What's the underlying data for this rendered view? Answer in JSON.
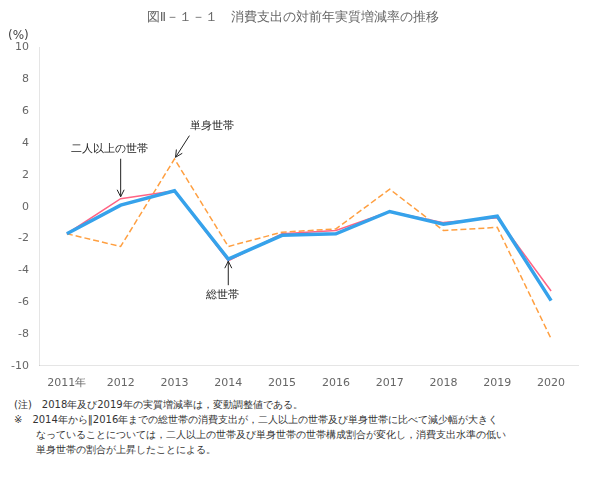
{
  "chart_data": {
    "type": "line",
    "title": "図Ⅱ－１－１　消費支出の対前年実質増減率の推移",
    "ylabel": "(%)",
    "x": [
      2011,
      2012,
      2013,
      2014,
      2015,
      2016,
      2017,
      2018,
      2019,
      2020
    ],
    "xlim": [
      2010.5,
      2020.5
    ],
    "xticks": [
      {
        "value": 2011,
        "label": "2011年"
      },
      2012,
      2013,
      2014,
      2015,
      2016,
      2017,
      2018,
      2019,
      2020
    ],
    "ylim": [
      -10,
      10
    ],
    "yticks": [
      -10,
      -8,
      -6,
      -4,
      -2,
      0,
      2,
      4,
      6,
      8,
      10
    ],
    "grid": false,
    "series": [
      {
        "name": "総世帯",
        "values": [
          -1.7,
          0.1,
          1.0,
          -3.3,
          -1.8,
          -1.7,
          -0.3,
          -1.1,
          -0.6,
          -5.9
        ],
        "line_style": "solid"
      },
      {
        "name": "二人以上の世帯",
        "values": [
          -1.7,
          0.5,
          1.0,
          -3.4,
          -1.7,
          -1.5,
          -0.3,
          -1.0,
          -0.7,
          -5.3
        ],
        "line_style": "solid"
      },
      {
        "name": "単身世帯",
        "values": [
          -1.7,
          -2.5,
          3.0,
          -2.5,
          -1.6,
          -1.4,
          1.1,
          -1.5,
          -1.3,
          -8.3
        ],
        "line_style": "dashed"
      }
    ],
    "annotations": [
      {
        "text": "二人以上の世帯",
        "x": 2012,
        "y": 0.5
      },
      {
        "text": "単身世帯",
        "x": 2013,
        "y": 3.0
      },
      {
        "text": "総世帯",
        "x": 2014,
        "y": -3.3
      }
    ],
    "notes": [
      "(注)　2018年及び2019年の実質増減率は，変動調整値である。",
      "※　2014年から‖2016年までの総世帯の消費支出が，二人以上の世帯及び単身世帯に比べて減少幅が大きく",
      "なっていることについては，二人以上の世帯及び単身世帯の世帯構成割合が変化し，消費支出水準の低い",
      "単身世帯の割合が上昇したことによる。"
    ]
  }
}
